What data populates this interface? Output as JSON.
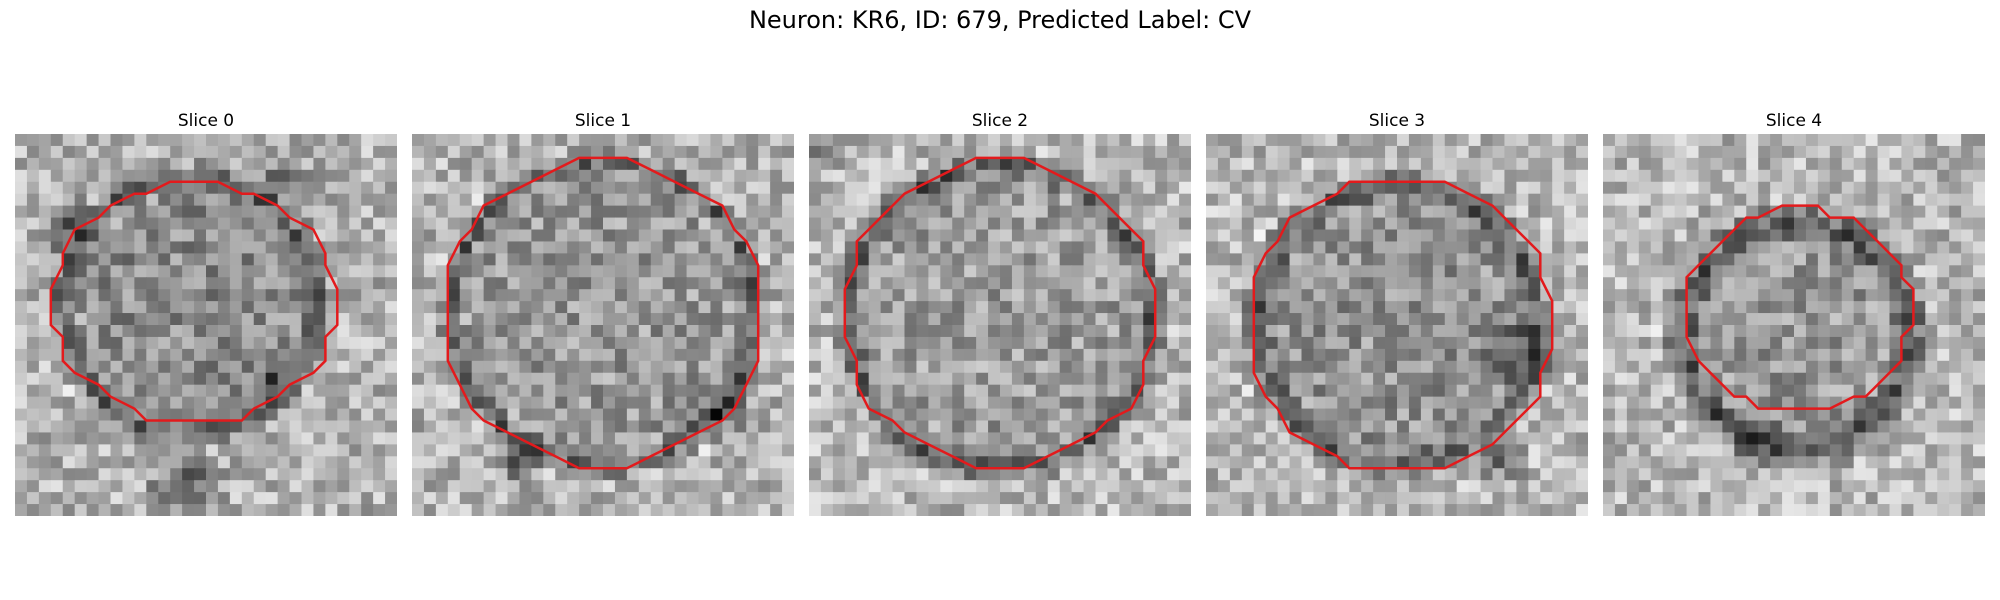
{
  "title": "Neuron: KR6, ID: 679, Predicted Label: CV",
  "panels": [
    {
      "label": "Slice 0"
    },
    {
      "label": "Slice 1"
    },
    {
      "label": "Slice 2"
    },
    {
      "label": "Slice 3"
    },
    {
      "label": "Slice 4"
    }
  ],
  "contour_color": "#e31a1c",
  "colormap": "grayscale"
}
